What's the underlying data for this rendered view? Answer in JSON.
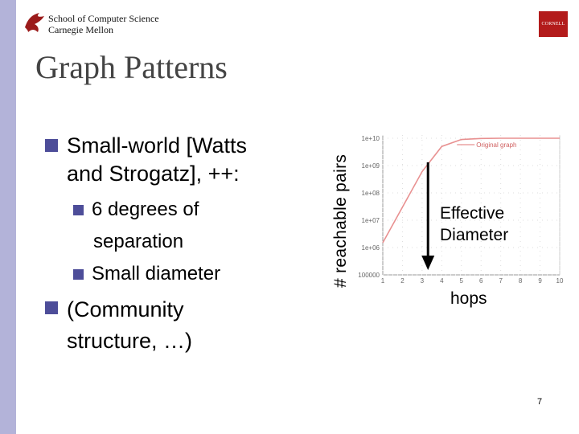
{
  "header": {
    "school": "School of Computer Science",
    "university": "Carnegie Mellon",
    "right_logo": "CORNELL"
  },
  "title": "Graph Patterns",
  "bullets": {
    "b1_line1": "Small-world [Watts",
    "b1_line2": "and Strogatz], ++:",
    "sub1": "6 degrees of",
    "sub1_line2": "separation",
    "sub2": "Small diameter",
    "b2_line1": "(Community",
    "b2_line2": "structure, …)"
  },
  "chart_data": {
    "type": "line",
    "ylabel": "# reachable pairs",
    "xlabel": "hops",
    "legend": "Original graph",
    "y_scale": "log",
    "y_ticks": [
      "100000",
      "1e+06",
      "1e+07",
      "1e+08",
      "1e+09",
      "1e+10"
    ],
    "x_ticks": [
      "1",
      "2",
      "3",
      "4",
      "5",
      "6",
      "7",
      "8",
      "9",
      "10"
    ],
    "series": [
      {
        "name": "Original graph",
        "x": [
          1,
          2,
          3,
          4,
          5,
          6,
          7,
          8,
          9,
          10
        ],
        "y": [
          1500000.0,
          30000000.0,
          600000000.0,
          5000000000.0,
          9000000000.0,
          9800000000.0,
          10000000000.0,
          10000000000.0,
          10000000000.0,
          10000000000.0
        ]
      }
    ],
    "annotation": "Effective Diameter",
    "annotation_x": 3.3
  },
  "annotation_line1": "Effective",
  "annotation_line2": "Diameter",
  "page_number": "7",
  "colors": {
    "bullet": "#4d4d99",
    "left_bar": "#b3b3d9",
    "curve": "#e89090",
    "cornell_red": "#b31b1b"
  }
}
